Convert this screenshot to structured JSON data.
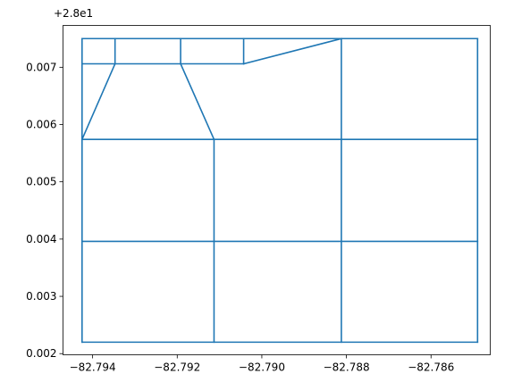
{
  "chart_data": {
    "type": "line",
    "title": "",
    "xlabel": "",
    "ylabel": "",
    "xlim": [
      -82.7947,
      -82.7846
    ],
    "ylim": [
      0.00198,
      0.00773
    ],
    "y_offset_text": "+2.8e1",
    "grid": false,
    "legend": "none",
    "line_color": "#1f77b4",
    "x_ticks": [
      {
        "value": -82.794,
        "label": "−82.794"
      },
      {
        "value": -82.792,
        "label": "−82.792"
      },
      {
        "value": -82.79,
        "label": "−82.790"
      },
      {
        "value": -82.788,
        "label": "−82.788"
      },
      {
        "value": -82.786,
        "label": "−82.786"
      }
    ],
    "y_ticks": [
      {
        "value": 0.002,
        "label": "0.002"
      },
      {
        "value": 0.003,
        "label": "0.003"
      },
      {
        "value": 0.004,
        "label": "0.004"
      },
      {
        "value": 0.005,
        "label": "0.005"
      },
      {
        "value": 0.006,
        "label": "0.006"
      },
      {
        "value": 0.007,
        "label": "0.007"
      }
    ],
    "segments": [
      [
        [
          -82.79425,
          0.0075
        ],
        [
          -82.7849,
          0.0075
        ]
      ],
      [
        [
          -82.79425,
          0.00706
        ],
        [
          -82.79043,
          0.00706
        ]
      ],
      [
        [
          -82.79043,
          0.00706
        ],
        [
          -82.78812,
          0.0075
        ]
      ],
      [
        [
          -82.79425,
          0.00574
        ],
        [
          -82.7849,
          0.00574
        ]
      ],
      [
        [
          -82.79425,
          0.00396
        ],
        [
          -82.7849,
          0.00396
        ]
      ],
      [
        [
          -82.79425,
          0.0022
        ],
        [
          -82.7849,
          0.0022
        ]
      ],
      [
        [
          -82.79425,
          0.0022
        ],
        [
          -82.79425,
          0.0075
        ]
      ],
      [
        [
          -82.7849,
          0.0022
        ],
        [
          -82.7849,
          0.0075
        ]
      ],
      [
        [
          -82.79113,
          0.0022
        ],
        [
          -82.79113,
          0.00574
        ]
      ],
      [
        [
          -82.78812,
          0.0022
        ],
        [
          -82.78812,
          0.0075
        ]
      ],
      [
        [
          -82.79347,
          0.00706
        ],
        [
          -82.79347,
          0.0075
        ]
      ],
      [
        [
          -82.79192,
          0.00706
        ],
        [
          -82.79192,
          0.0075
        ]
      ],
      [
        [
          -82.79043,
          0.00706
        ],
        [
          -82.79043,
          0.0075
        ]
      ],
      [
        [
          -82.79425,
          0.00574
        ],
        [
          -82.79347,
          0.00706
        ]
      ],
      [
        [
          -82.79192,
          0.00706
        ],
        [
          -82.79113,
          0.00574
        ]
      ]
    ]
  }
}
